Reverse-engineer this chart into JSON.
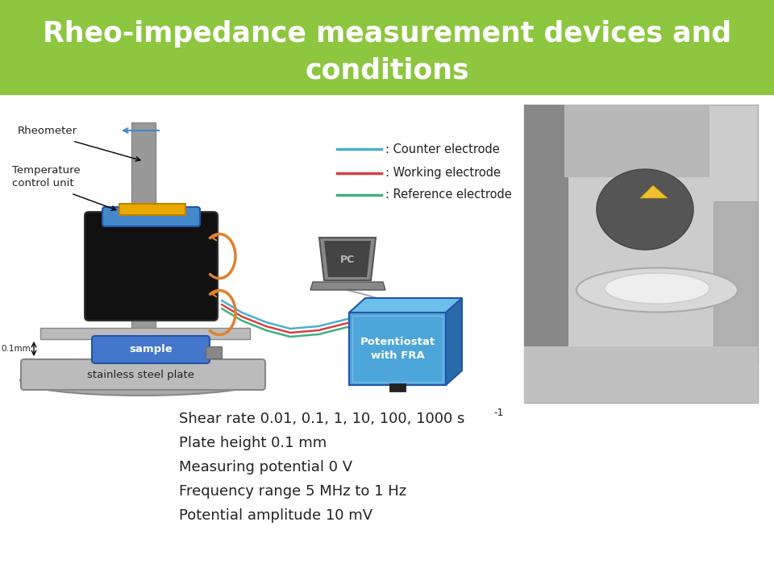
{
  "title_line1": "Rheo-impedance measurement devices and",
  "title_line2": "conditions",
  "title_bg_color": "#8dc63f",
  "title_text_color": "#ffffff",
  "bg_color": "#ffffff",
  "legend_items": [
    {
      "color": "#4bafd4",
      "label": ": Counter electrode"
    },
    {
      "color": "#d94040",
      "label": ": Working electrode"
    },
    {
      "color": "#40b080",
      "label": ": Reference electrode"
    }
  ],
  "bullet_lines": [
    "Shear rate 0.01, 0.1, 1, 10, 100, 1000 s",
    "Plate height 0.1 mm",
    "Measuring potential 0 V",
    "Frequency range 5 MHz to 1 Hz",
    "Potential amplitude 10 mV"
  ],
  "potentiostat_color_front": "#4da6d9",
  "potentiostat_color_top": "#6bbfe8",
  "potentiostat_color_side": "#2a6aaa",
  "potentiostat_label": "Potentiostat\nwith FRA",
  "sample_color": "#4477cc",
  "sample_label": "sample",
  "plate_color": "#aaaaaa",
  "plate_color2": "#bbbbbb",
  "pole_color": "#999999",
  "rheo_body_color": "#111111",
  "blue_top_color": "#4488cc",
  "yellow_color": "#e8a800",
  "orange_arrow_color": "#e08030",
  "pc_dark": "#444444",
  "pc_mid": "#888888",
  "pc_light": "#bbbbbb"
}
